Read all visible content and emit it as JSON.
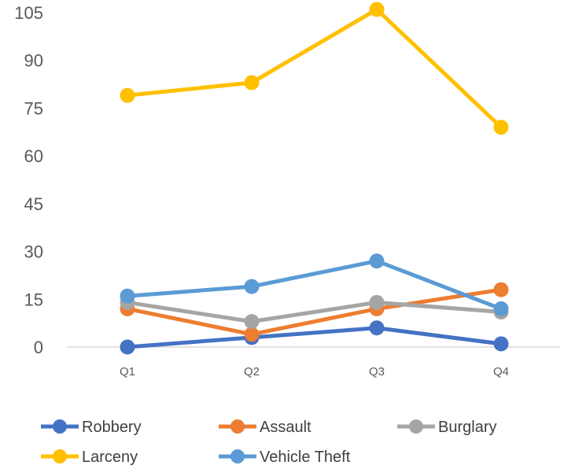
{
  "chart_data": {
    "type": "line",
    "title": "",
    "xlabel": "",
    "ylabel": "",
    "categories": [
      "Q1",
      "Q2",
      "Q3",
      "Q4"
    ],
    "ylim": [
      0,
      105
    ],
    "yticks": [
      "0",
      "15",
      "30",
      "45",
      "60",
      "75",
      "90",
      "105"
    ],
    "grid": false,
    "legend_position": "bottom",
    "series": [
      {
        "name": "Robbery",
        "color": "#4472C4",
        "values": [
          0,
          3,
          6,
          1
        ]
      },
      {
        "name": "Assault",
        "color": "#ED7D31",
        "values": [
          12,
          4,
          12,
          18
        ]
      },
      {
        "name": "Burglary",
        "color": "#A5A5A5",
        "values": [
          14,
          8,
          14,
          11
        ]
      },
      {
        "name": "Larceny",
        "color": "#FFC000",
        "values": [
          79,
          83,
          106,
          69
        ]
      },
      {
        "name": "Vehicle Theft",
        "color": "#5B9BD5",
        "values": [
          16,
          19,
          27,
          12
        ]
      }
    ]
  }
}
